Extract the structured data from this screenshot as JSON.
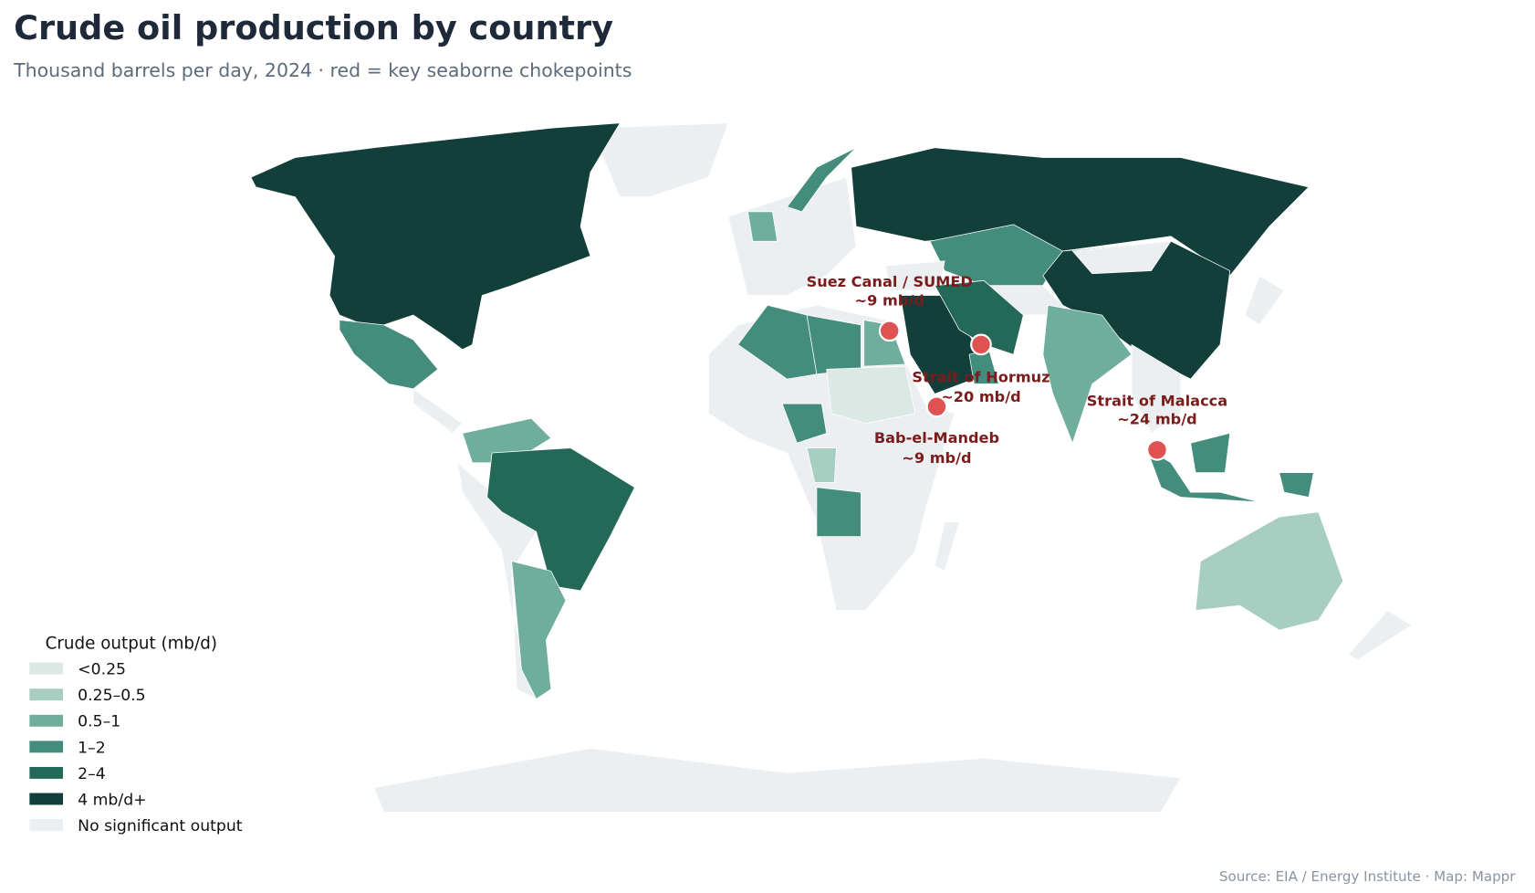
{
  "title": "Crude oil production by country",
  "subtitle": "Thousand barrels per day, 2024 · red = key seaborne chokepoints",
  "legend": {
    "title": "Crude output (mb/d)",
    "items": [
      {
        "label": "<0.25",
        "color": "#dce8e3"
      },
      {
        "label": "0.25–0.5",
        "color": "#a8cdc1"
      },
      {
        "label": "0.5–1",
        "color": "#6fae9c"
      },
      {
        "label": "1–2",
        "color": "#448c7b"
      },
      {
        "label": "2–4",
        "color": "#246857"
      },
      {
        "label": "4 mb/d+",
        "color": "#123f3a"
      },
      {
        "label": "No significant output",
        "color": "#eceff1"
      }
    ]
  },
  "chokepoints": [
    {
      "name": "Suez Canal / SUMED",
      "flow": "~9 mb/d"
    },
    {
      "name": "Strait of Hormuz",
      "flow": "~20 mb/d"
    },
    {
      "name": "Bab-el-Mandeb",
      "flow": "~9 mb/d"
    },
    {
      "name": "Strait of Malacca",
      "flow": "~24 mb/d"
    }
  ],
  "marker_color": "#e05252",
  "source": "Source: EIA / Energy Institute · Map: Mappr"
}
